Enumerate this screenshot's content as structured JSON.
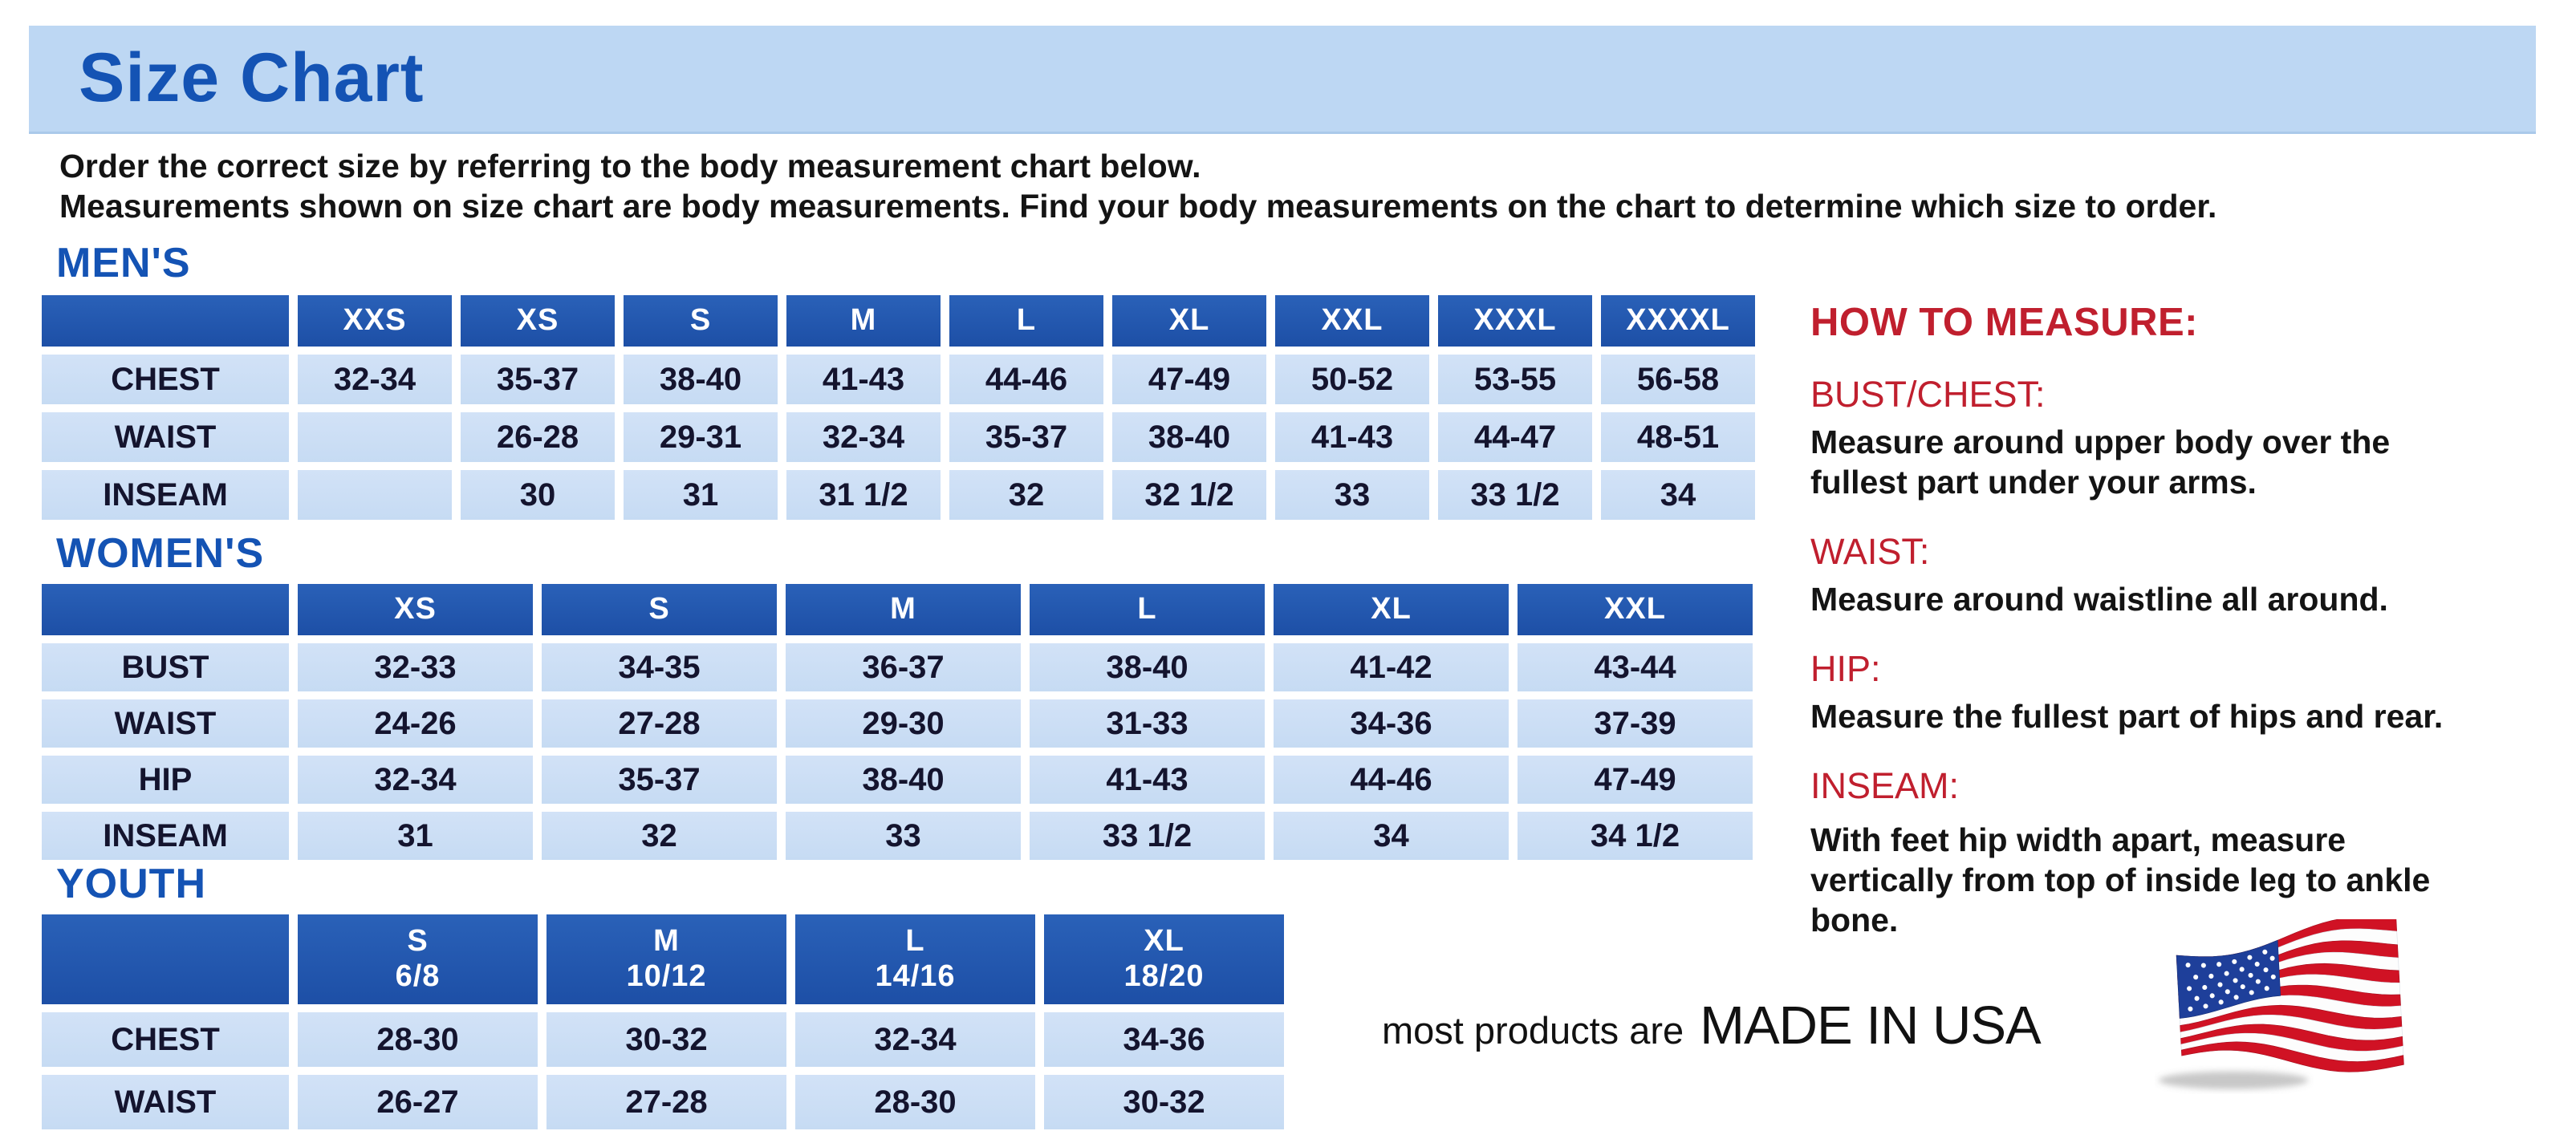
{
  "page": {
    "title": "Size Chart",
    "intro_lines": [
      "Order the correct size by referring to the body measurement chart below.",
      "Measurements shown on size chart are body measurements.  Find your body measurements on the chart to determine which size to order."
    ]
  },
  "colors": {
    "banner_blue": "#bdd7f3",
    "title_blue": "#1453b4",
    "header_blue": "#1d4fa6",
    "cell_blue": "#c9dcf3",
    "heading_red": "#c01f2e",
    "flag_red": "#d01224",
    "flag_navy": "#1e3f9a"
  },
  "tables": [
    {
      "section_label": "MEN'S",
      "columns": [
        "",
        "XXS",
        "XS",
        "S",
        "M",
        "L",
        "XL",
        "XXL",
        "XXXL",
        "XXXXL"
      ],
      "rows": [
        {
          "label": "CHEST",
          "values": [
            "32-34",
            "35-37",
            "38-40",
            "41-43",
            "44-46",
            "47-49",
            "50-52",
            "53-55",
            "56-58"
          ]
        },
        {
          "label": "WAIST",
          "values": [
            "",
            "26-28",
            "29-31",
            "32-34",
            "35-37",
            "38-40",
            "41-43",
            "44-47",
            "48-51"
          ]
        },
        {
          "label": "INSEAM",
          "values": [
            "",
            "30",
            "31",
            "31 1/2",
            "32",
            "32 1/2",
            "33",
            "33 1/2",
            "34"
          ]
        }
      ]
    },
    {
      "section_label": "WOMEN'S",
      "columns": [
        "",
        "XS",
        "S",
        "M",
        "L",
        "XL",
        "XXL"
      ],
      "rows": [
        {
          "label": "BUST",
          "values": [
            "32-33",
            "34-35",
            "36-37",
            "38-40",
            "41-42",
            "43-44"
          ]
        },
        {
          "label": "WAIST",
          "values": [
            "24-26",
            "27-28",
            "29-30",
            "31-33",
            "34-36",
            "37-39"
          ]
        },
        {
          "label": "HIP",
          "values": [
            "32-34",
            "35-37",
            "38-40",
            "41-43",
            "44-46",
            "47-49"
          ]
        },
        {
          "label": "INSEAM",
          "values": [
            "31",
            "32",
            "33",
            "33 1/2",
            "34",
            "34 1/2"
          ]
        }
      ]
    },
    {
      "section_label": "YOUTH",
      "columns": [
        "",
        "S\n6/8",
        "M\n10/12",
        "L\n14/16",
        "XL\n18/20"
      ],
      "rows": [
        {
          "label": "CHEST",
          "values": [
            "28-30",
            "30-32",
            "32-34",
            "34-36"
          ]
        },
        {
          "label": "WAIST",
          "values": [
            "26-27",
            "27-28",
            "28-30",
            "30-32"
          ]
        }
      ]
    }
  ],
  "how_to_measure": {
    "title": "HOW TO MEASURE:",
    "items": [
      {
        "label": "BUST/CHEST:",
        "text": "Measure around upper body over the fullest part under your arms."
      },
      {
        "label": "WAIST:",
        "text": "Measure around waistline all around."
      },
      {
        "label": "HIP:",
        "text": "Measure the fullest part of hips and rear."
      },
      {
        "label": "INSEAM:",
        "text": "With feet hip width apart, measure vertically from top of inside leg to ankle bone."
      }
    ]
  },
  "footer": {
    "prefix": "most products are",
    "highlight": "MADE IN USA",
    "flag_icon": "us-flag-icon"
  }
}
